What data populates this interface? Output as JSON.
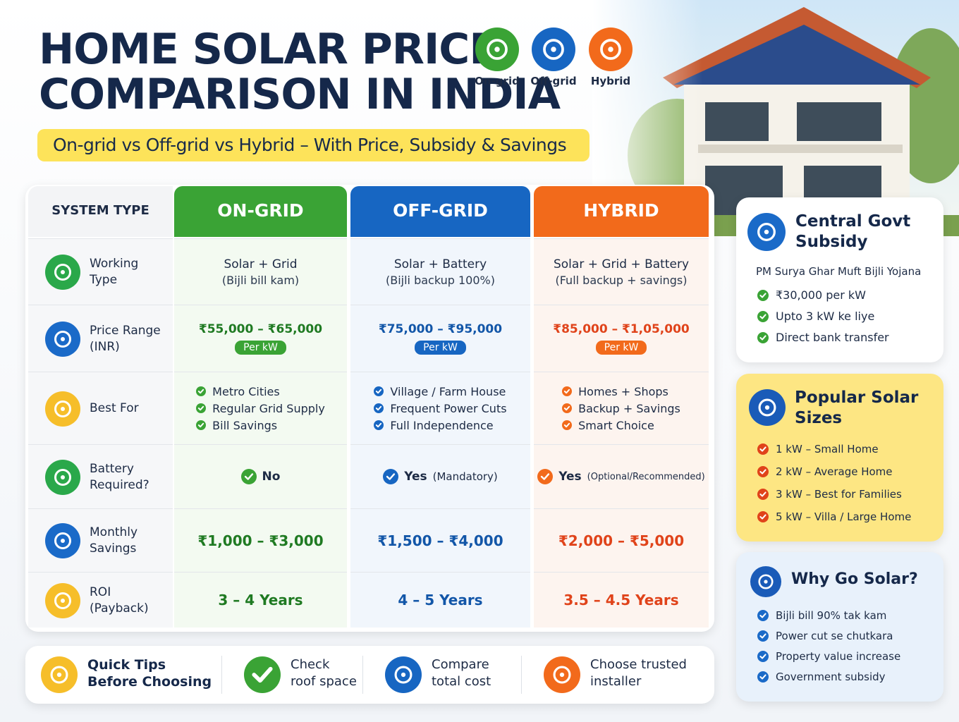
{
  "header": {
    "title": [
      "HOME SOLAR PRICE",
      "COMPARISON IN INDIA"
    ],
    "subtitle": "On-grid vs Off-grid vs Hybrid – With Price, Subsidy & Savings",
    "system_icons": [
      "On-grid",
      "Off-grid",
      "Hybrid"
    ]
  },
  "table": {
    "corner": "SYSTEM TYPE",
    "columns": [
      "ON-GRID",
      "OFF-GRID",
      "HYBRID"
    ],
    "rows": [
      {
        "label": [
          "Working",
          "Type"
        ],
        "cells": [
          {
            "main": "Solar + Grid",
            "sub": "(Bijli bill kam)"
          },
          {
            "main": "Solar + Battery",
            "sub": "(Bijli backup 100%)"
          },
          {
            "main": "Solar + Grid + Battery",
            "sub": "(Full backup + savings)"
          }
        ]
      },
      {
        "label": [
          "Price Range",
          "(INR)"
        ],
        "cells": [
          {
            "main": "₹55,000 – ₹65,000",
            "badge": "Per kW"
          },
          {
            "main": "₹75,000 – ₹95,000",
            "badge": "Per kW"
          },
          {
            "main": "₹85,000 – ₹1,05,000",
            "badge": "Per kW"
          }
        ]
      },
      {
        "label": [
          "Best For"
        ],
        "cells": [
          {
            "list": [
              "Metro Cities",
              "Regular Grid Supply",
              "Bill Savings"
            ]
          },
          {
            "list": [
              "Village / Farm House",
              "Frequent Power Cuts",
              "Full Independence"
            ]
          },
          {
            "list": [
              "Homes + Shops",
              "Backup + Savings",
              "Smart Choice"
            ]
          }
        ]
      },
      {
        "label": [
          "Battery",
          "Required?"
        ],
        "cells": [
          {
            "main": "No"
          },
          {
            "main": "Yes",
            "note": "(Mandatory)"
          },
          {
            "main": "Yes",
            "note": "(Optional/Recommended)"
          }
        ]
      },
      {
        "label": [
          "Monthly",
          "Savings"
        ],
        "cells": [
          {
            "main": "₹1,000 – ₹3,000"
          },
          {
            "main": "₹1,500 – ₹4,000"
          },
          {
            "main": "₹2,000 – ₹5,000"
          }
        ]
      },
      {
        "label": [
          "ROI",
          "(Payback)"
        ],
        "cells": [
          {
            "main": "3 – 4 Years"
          },
          {
            "main": "4 – 5 Years"
          },
          {
            "main": "3.5 – 4.5 Years"
          }
        ]
      }
    ]
  },
  "subsidy": {
    "title": [
      "Central Govt",
      "Subsidy"
    ],
    "scheme": "PM Surya Ghar Muft Bijli Yojana",
    "items": [
      "₹30,000 per kW",
      "Upto 3 kW ke liye",
      "Direct bank transfer"
    ]
  },
  "sizes": {
    "title": [
      "Popular Solar",
      "Sizes"
    ],
    "items": [
      "1 kW – Small Home",
      "2 kW – Average Home",
      "3 kW – Best for Families",
      "5 kW – Villa / Large Home"
    ]
  },
  "why": {
    "title": "Why Go Solar?",
    "items": [
      "Bijli bill 90% tak kam",
      "Power cut se chutkara",
      "Property value increase",
      "Government subsidy"
    ]
  },
  "tips": {
    "title": [
      "Quick Tips",
      "Before Choosing"
    ],
    "items": [
      [
        "Check",
        "roof space"
      ],
      [
        "Compare",
        "total cost"
      ],
      [
        "Choose trusted",
        "installer"
      ]
    ]
  }
}
